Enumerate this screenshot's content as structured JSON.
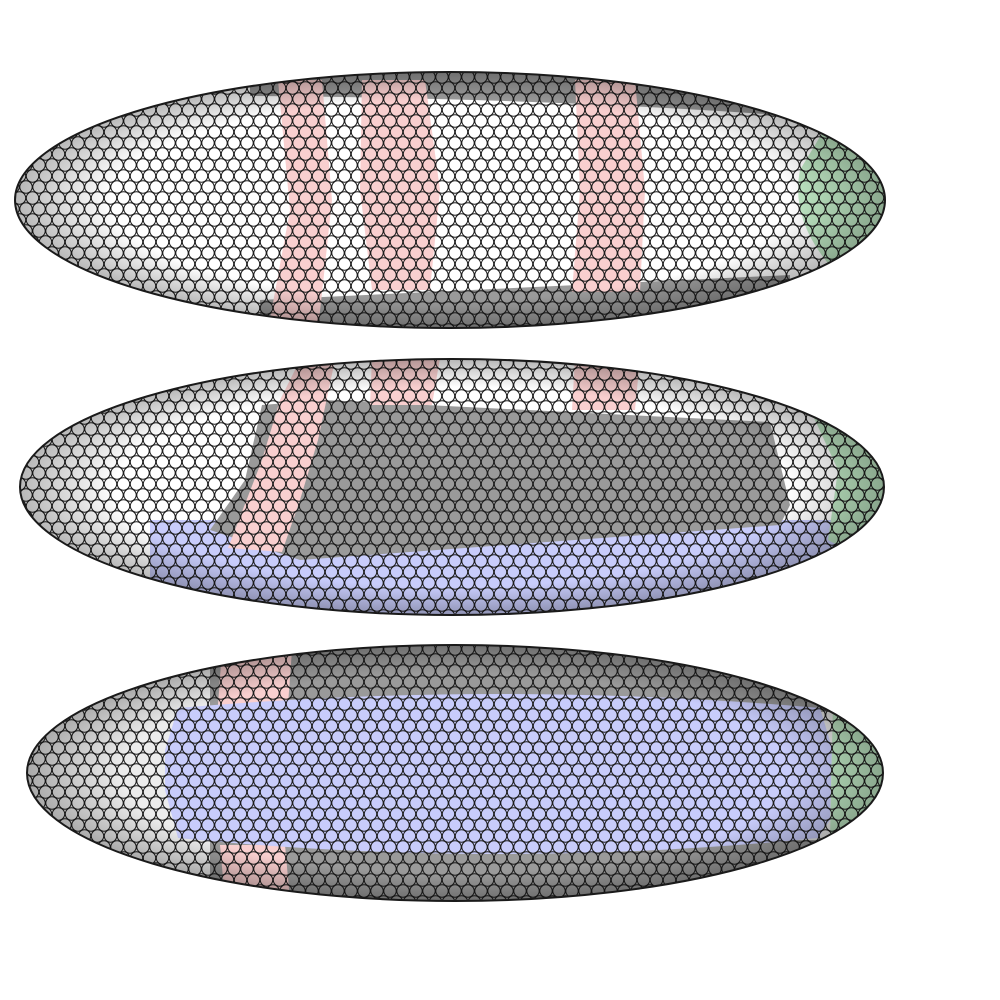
{
  "figure": {
    "description_visible_text": "",
    "colors": {
      "background": "#ffffff",
      "cell_outline": "#1a1a1a",
      "unmarked": "#ffffff",
      "shaded_far_side": "#ececec",
      "dorsal_dark": "#9a9a9a",
      "stripe_pink": "#f9cfcf",
      "posterior_green": "#bfe8c4",
      "ventral_blue": "#c8ccfb"
    },
    "views": [
      {
        "name": "lateral-top-view",
        "regions": [
          "unmarked",
          "stripe_pink",
          "stripe_pink",
          "stripe_pink",
          "posterior_green",
          "dorsal_dark"
        ]
      },
      {
        "name": "oblique-middle-view",
        "regions": [
          "unmarked",
          "stripe_pink",
          "dorsal_dark",
          "ventral_blue",
          "posterior_green"
        ]
      },
      {
        "name": "ventral-bottom-view",
        "regions": [
          "shaded_far_side",
          "ventral_blue",
          "stripe_pink",
          "posterior_green",
          "dorsal_dark"
        ]
      }
    ]
  }
}
